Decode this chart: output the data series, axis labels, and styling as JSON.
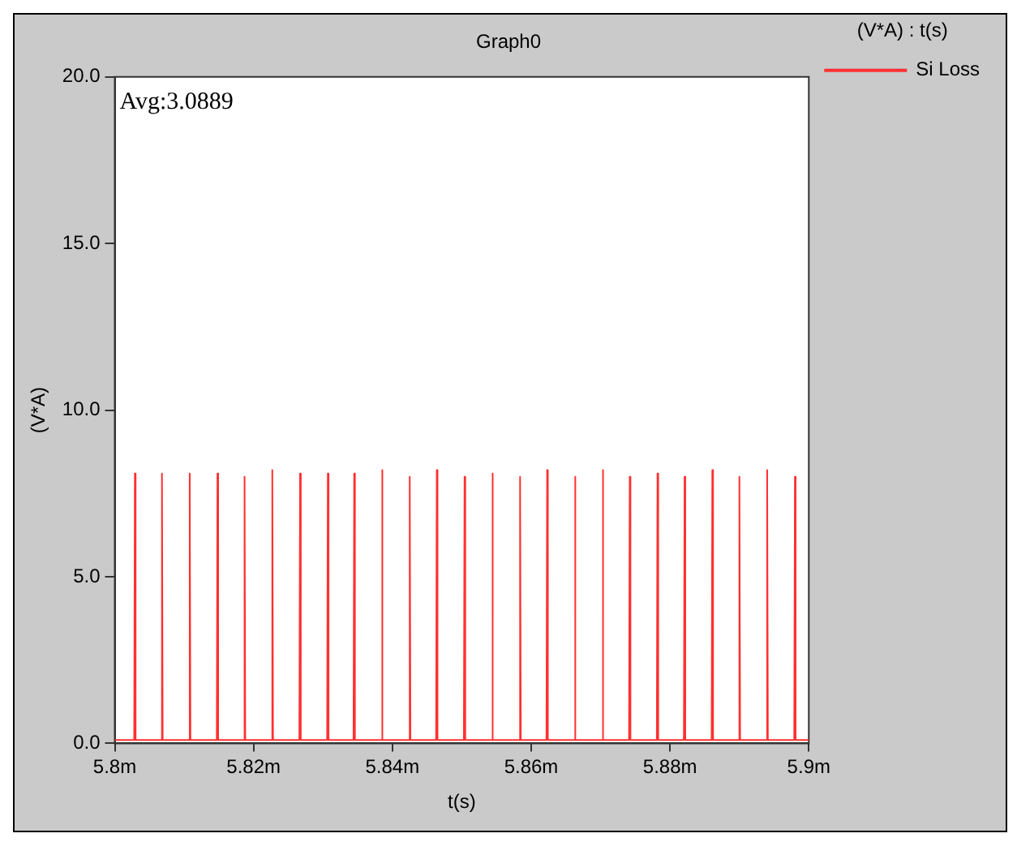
{
  "chart_data": {
    "type": "line",
    "title": "Graph0",
    "xlabel": "t(s)",
    "ylabel": "(V*A)",
    "legend_title": "(V*A) : t(s)",
    "legend": "right",
    "grid": false,
    "marker": "none",
    "line_style": "solid",
    "annotations": [
      "Avg:3.0889"
    ],
    "xlim": [
      5.8,
      5.9
    ],
    "xticks": [
      {
        "value": 5.8,
        "label": "5.8m"
      },
      {
        "value": 5.82,
        "label": "5.82m"
      },
      {
        "value": 5.84,
        "label": "5.84m"
      },
      {
        "value": 5.86,
        "label": "5.86m"
      },
      {
        "value": 5.88,
        "label": "5.88m"
      },
      {
        "value": 5.9,
        "label": "5.9m"
      }
    ],
    "ylim": [
      0,
      20
    ],
    "yticks": [
      {
        "value": 0,
        "label": "0.0"
      },
      {
        "value": 5,
        "label": "5.0"
      },
      {
        "value": 10,
        "label": "10.0"
      },
      {
        "value": 15,
        "label": "15.0"
      },
      {
        "value": 20,
        "label": "20.0"
      }
    ],
    "series": [
      {
        "name": "Si Loss",
        "color": "#ff3030",
        "x": [
          5.8,
          5.8028,
          5.8029,
          5.803,
          5.8067,
          5.8068,
          5.8069,
          5.8107,
          5.8108,
          5.8109,
          5.8147,
          5.8148,
          5.8149,
          5.8186,
          5.8187,
          5.8188,
          5.8226,
          5.8227,
          5.8228,
          5.8266,
          5.8267,
          5.8268,
          5.8306,
          5.8307,
          5.8308,
          5.8344,
          5.8345,
          5.8346,
          5.8384,
          5.8385,
          5.8386,
          5.8424,
          5.8425,
          5.8426,
          5.8463,
          5.8464,
          5.8465,
          5.8503,
          5.8504,
          5.8505,
          5.8543,
          5.8544,
          5.8545,
          5.8583,
          5.8584,
          5.8585,
          5.8622,
          5.8623,
          5.8624,
          5.8662,
          5.8663,
          5.8664,
          5.8702,
          5.8703,
          5.8704,
          5.8741,
          5.8742,
          5.8743,
          5.8781,
          5.8782,
          5.8783,
          5.882,
          5.8821,
          5.8822,
          5.886,
          5.8861,
          5.8862,
          5.8899,
          5.89,
          5.8901,
          5.8939,
          5.894,
          5.8941,
          5.8979,
          5.898,
          5.8981,
          5.9
        ],
        "values": [
          0.1,
          0.1,
          8.1,
          0.1,
          0.1,
          8.1,
          0.1,
          0.1,
          8.1,
          0.1,
          0.1,
          8.1,
          0.1,
          0.1,
          8.0,
          0.1,
          0.1,
          8.2,
          0.1,
          0.1,
          8.1,
          0.1,
          0.1,
          8.1,
          0.1,
          0.1,
          8.1,
          0.1,
          0.1,
          8.2,
          0.1,
          0.1,
          8.0,
          0.1,
          0.1,
          8.2,
          0.1,
          0.1,
          8.0,
          0.1,
          0.1,
          8.1,
          0.1,
          0.1,
          8.0,
          0.1,
          0.1,
          8.2,
          0.1,
          0.1,
          8.0,
          0.1,
          0.1,
          8.2,
          0.1,
          0.1,
          8.0,
          0.1,
          0.1,
          8.1,
          0.1,
          0.1,
          8.0,
          0.1,
          0.1,
          8.2,
          0.1,
          0.1,
          8.0,
          0.1,
          0.1,
          8.2,
          0.1,
          0.1,
          8.0,
          0.1,
          0.1
        ]
      }
    ]
  }
}
